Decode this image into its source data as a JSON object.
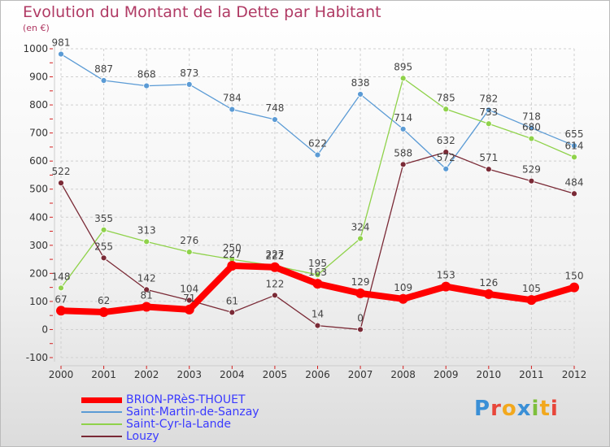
{
  "title": "Evolution du Montant de la Dette par Habitant",
  "unit_label": "(en €)",
  "logo": {
    "letters": [
      "P",
      "r",
      "o",
      "x",
      "i",
      "t",
      "i"
    ],
    "colors": [
      "#3a8fd6",
      "#e8463a",
      "#f2a81d",
      "#3a8fd6",
      "#7dbf3b",
      "#f2a81d",
      "#e8463a"
    ]
  },
  "chart_data": {
    "type": "line",
    "title": "Evolution du Montant de la Dette par Habitant",
    "ylabel": "(en €)",
    "xlabel": "",
    "ylim": [
      -100,
      1000
    ],
    "yticks": [
      -100,
      0,
      100,
      200,
      300,
      400,
      500,
      600,
      700,
      800,
      900,
      1000
    ],
    "categories": [
      "2000",
      "2001",
      "2002",
      "2003",
      "2004",
      "2005",
      "2006",
      "2007",
      "2008",
      "2009",
      "2010",
      "2011",
      "2012"
    ],
    "series": [
      {
        "name": "Saint-Martin-de-Sanzay",
        "color": "#5b9bd5",
        "values": [
          981,
          887,
          868,
          873,
          784,
          748,
          622,
          838,
          714,
          572,
          782,
          718,
          655
        ]
      },
      {
        "name": "Saint-Cyr-la-Lande",
        "color": "#8fd24a",
        "values": [
          148,
          355,
          313,
          276,
          250,
          227,
          195,
          324,
          895,
          785,
          733,
          680,
          614
        ]
      },
      {
        "name": "Louzy",
        "color": "#7a2a36",
        "values": [
          522,
          255,
          142,
          104,
          61,
          122,
          14,
          0,
          588,
          632,
          571,
          529,
          484
        ]
      },
      {
        "name": "BRION-PRèS-THOUET",
        "color": "#ff0000",
        "values": [
          67,
          62,
          81,
          71,
          227,
          222,
          163,
          129,
          109,
          153,
          126,
          105,
          150
        ]
      }
    ],
    "legend": [
      {
        "name": "BRION-PRèS-THOUET",
        "color": "#ff0000",
        "text_color": "#3a3aff"
      },
      {
        "name": "Saint-Martin-de-Sanzay",
        "color": "#5b9bd5",
        "text_color": "#3a3aff"
      },
      {
        "name": "Saint-Cyr-la-Lande",
        "color": "#8fd24a",
        "text_color": "#3a3aff"
      },
      {
        "name": "Louzy",
        "color": "#7a2a36",
        "text_color": "#3a3aff"
      }
    ]
  }
}
